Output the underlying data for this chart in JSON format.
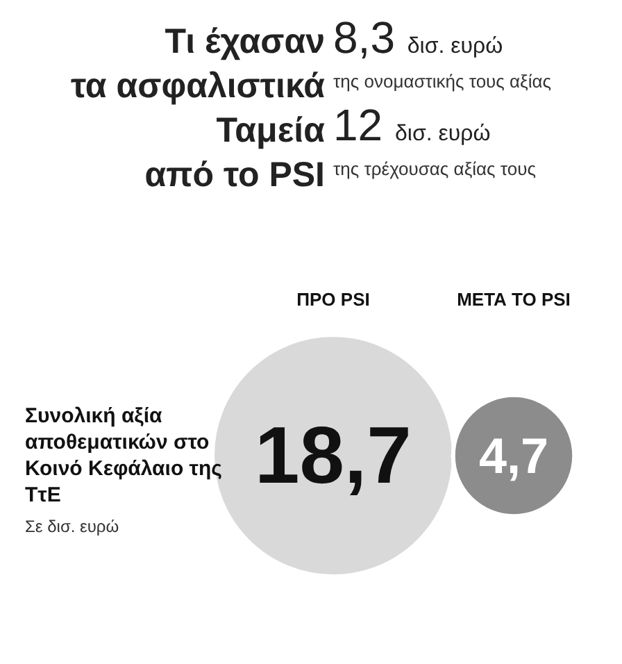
{
  "chart_data": {
    "type": "other",
    "title": "Τι έχασαν τα ασφαλιστικά Ταμεία από το PSI",
    "subtitle": "Συνολική αξία αποθεματικών στο Κοινό Κεφάλαιο της ΤτΕ",
    "ylabel": "Σε δισ. ευρώ",
    "annotations": [
      "8,3 δισ. ευρώ της ονομαστικής τους αξίας",
      "12 δισ. ευρώ της τρέχουσας αξίας τους"
    ],
    "categories": [
      "ΠΡΟ PSI",
      "ΜΕΤΑ ΤΟ PSI"
    ],
    "values": [
      18.7,
      4.7
    ],
    "value_labels": [
      "18,7",
      "4,7"
    ],
    "colors": [
      "#d9d9d9",
      "#8c8c8c"
    ]
  }
}
